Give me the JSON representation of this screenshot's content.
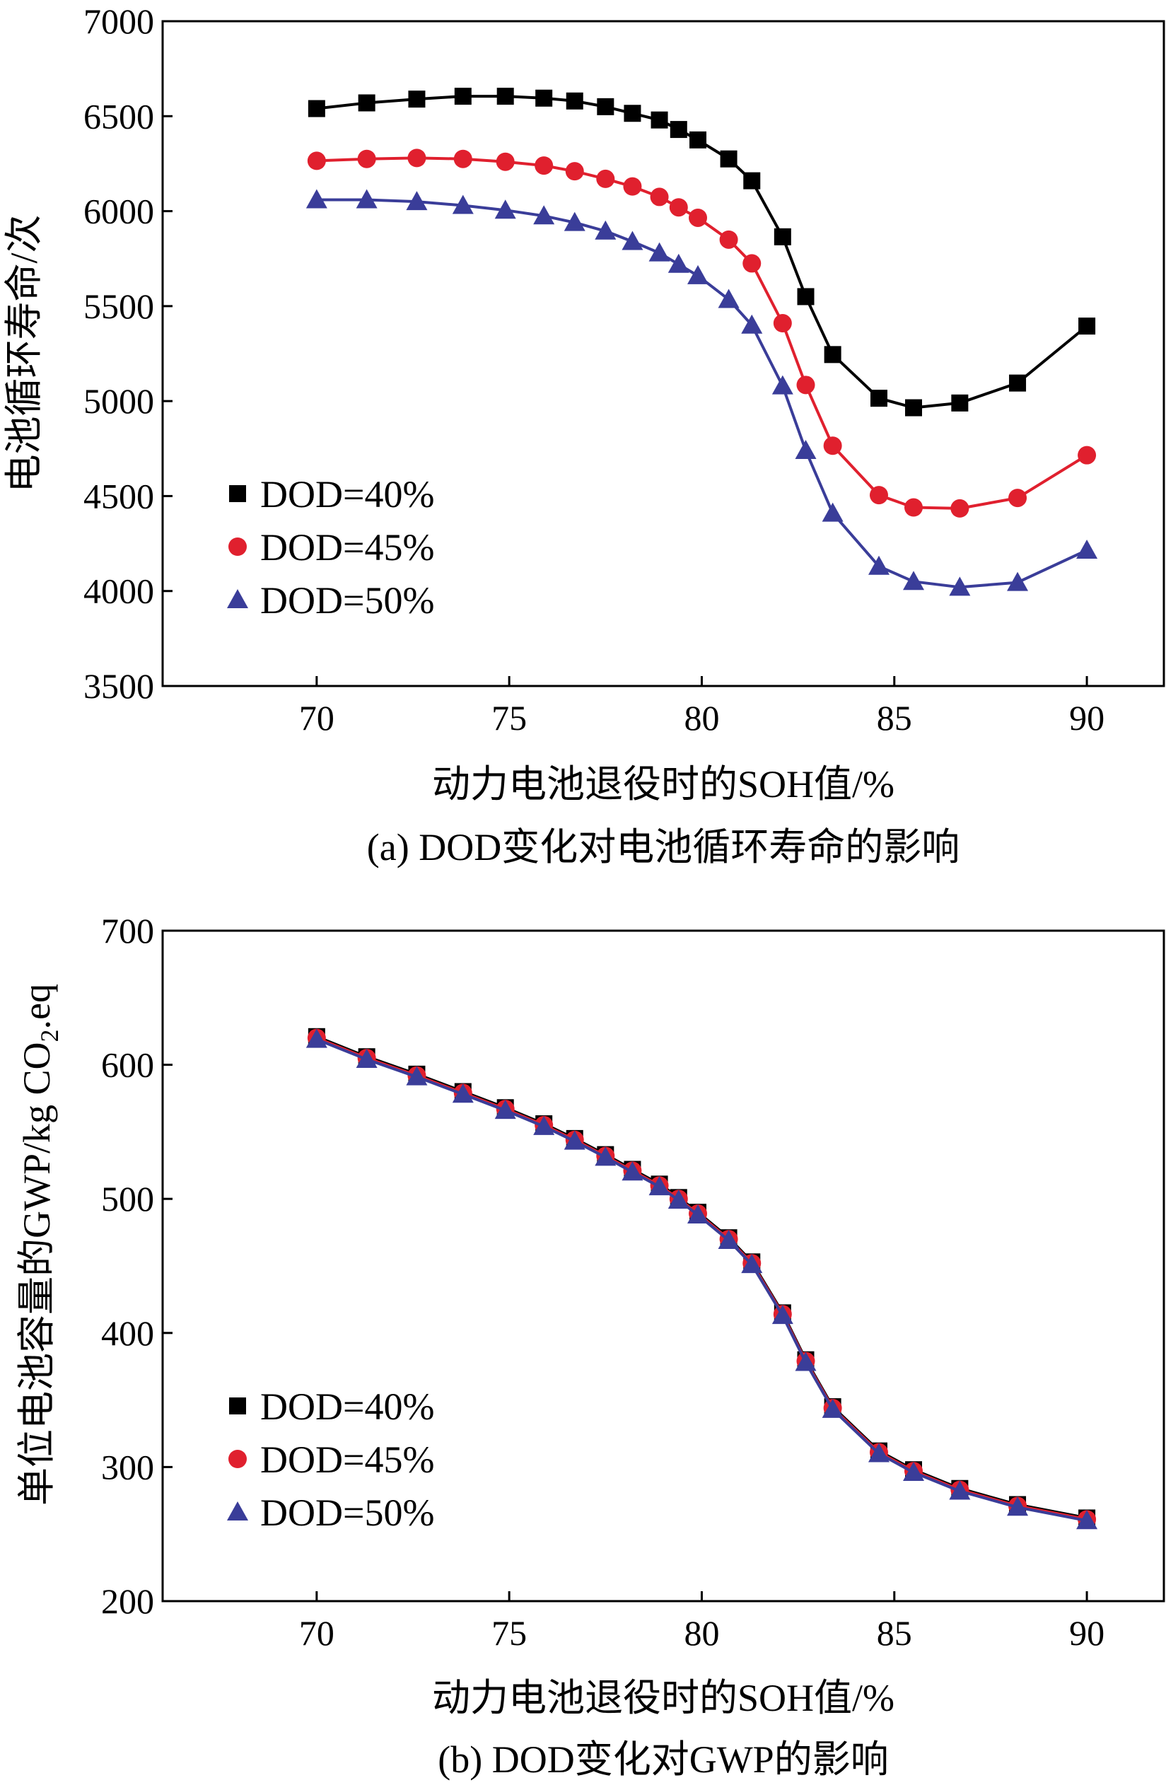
{
  "chart_data": [
    {
      "type": "line",
      "caption": "(a) DOD变化对电池循环寿命的影响",
      "xlabel": "动力电池退役时的SOH值/%",
      "ylabel": "电池循环寿命/次",
      "xlim": [
        66,
        92
      ],
      "ylim": [
        3500,
        7000
      ],
      "xticks": [
        70,
        75,
        80,
        85,
        90
      ],
      "yticks": [
        3500,
        4000,
        4500,
        5000,
        5500,
        6000,
        6500,
        7000
      ],
      "xtick_labels": [
        "70",
        "75",
        "80",
        "85",
        "90"
      ],
      "ytick_labels": [
        "3500",
        "4000",
        "4500",
        "5000",
        "5500",
        "6000",
        "6500",
        "7000"
      ],
      "legend_position": "lower-left",
      "grid": false,
      "series": [
        {
          "name": "DOD=40%",
          "marker": "square",
          "color": "#000000",
          "x": [
            70,
            71.3,
            72.6,
            73.8,
            74.9,
            75.9,
            76.7,
            77.5,
            78.2,
            78.9,
            79.4,
            79.9,
            80.7,
            81.3,
            82.1,
            82.7,
            83.4,
            84.6,
            85.5,
            86.7,
            88.2,
            90
          ],
          "y": [
            6540,
            6570,
            6590,
            6605,
            6605,
            6595,
            6580,
            6550,
            6515,
            6480,
            6430,
            6375,
            6275,
            6160,
            5865,
            5550,
            5245,
            5015,
            4965,
            4990,
            5095,
            5395
          ]
        },
        {
          "name": "DOD=45%",
          "marker": "circle",
          "color": "#e0202e",
          "x": [
            70,
            71.3,
            72.6,
            73.8,
            74.9,
            75.9,
            76.7,
            77.5,
            78.2,
            78.9,
            79.4,
            79.9,
            80.7,
            81.3,
            82.1,
            82.7,
            83.4,
            84.6,
            85.5,
            86.7,
            88.2,
            90
          ],
          "y": [
            6265,
            6275,
            6280,
            6275,
            6260,
            6240,
            6210,
            6170,
            6130,
            6075,
            6020,
            5965,
            5850,
            5725,
            5410,
            5085,
            4765,
            4505,
            4440,
            4435,
            4490,
            4715
          ]
        },
        {
          "name": "DOD=50%",
          "marker": "triangle",
          "color": "#3a3d99",
          "x": [
            70,
            71.3,
            72.6,
            73.8,
            74.9,
            75.9,
            76.7,
            77.5,
            78.2,
            78.9,
            79.4,
            79.9,
            80.7,
            81.3,
            82.1,
            82.7,
            83.4,
            84.6,
            85.5,
            86.7,
            88.2,
            90
          ],
          "y": [
            6060,
            6060,
            6050,
            6030,
            6005,
            5975,
            5940,
            5895,
            5840,
            5780,
            5720,
            5660,
            5535,
            5400,
            5080,
            4740,
            4410,
            4130,
            4050,
            4020,
            4045,
            4215
          ]
        }
      ]
    },
    {
      "type": "line",
      "caption": "(b) DOD变化对GWP的影响",
      "xlabel": "动力电池退役时的SOH值/%",
      "ylabel": "单位电池容量的GWP/kg CO",
      "ylabel_subscript": "2",
      "ylabel_suffix": ".eq",
      "xlim": [
        66,
        92
      ],
      "ylim": [
        200,
        700
      ],
      "xticks": [
        70,
        75,
        80,
        85,
        90
      ],
      "yticks": [
        200,
        300,
        400,
        500,
        600,
        700
      ],
      "xtick_labels": [
        "70",
        "75",
        "80",
        "85",
        "90"
      ],
      "ytick_labels": [
        "200",
        "300",
        "400",
        "500",
        "600",
        "700"
      ],
      "legend_position": "lower-left",
      "grid": false,
      "series": [
        {
          "name": "DOD=40%",
          "marker": "square",
          "color": "#000000",
          "x": [
            70,
            71.3,
            72.6,
            73.8,
            74.9,
            75.9,
            76.7,
            77.5,
            78.2,
            78.9,
            79.4,
            79.9,
            80.7,
            81.3,
            82.1,
            82.7,
            83.4,
            84.6,
            85.5,
            86.7,
            88.2,
            90
          ],
          "y": [
            621,
            606,
            593,
            580,
            568,
            556,
            545,
            533,
            522,
            511,
            501,
            490,
            471,
            453,
            415,
            380,
            345,
            312,
            298,
            284,
            272,
            262
          ]
        },
        {
          "name": "DOD=45%",
          "marker": "circle",
          "color": "#e0202e",
          "x": [
            70,
            71.3,
            72.6,
            73.8,
            74.9,
            75.9,
            76.7,
            77.5,
            78.2,
            78.9,
            79.4,
            79.9,
            80.7,
            81.3,
            82.1,
            82.7,
            83.4,
            84.6,
            85.5,
            86.7,
            88.2,
            90
          ],
          "y": [
            620,
            605,
            592,
            579,
            567,
            555,
            544,
            532,
            521,
            510,
            500,
            489,
            470,
            452,
            414,
            379,
            344,
            311,
            297,
            283,
            271,
            261
          ]
        },
        {
          "name": "DOD=50%",
          "marker": "triangle",
          "color": "#3a3d99",
          "x": [
            70,
            71.3,
            72.6,
            73.8,
            74.9,
            75.9,
            76.7,
            77.5,
            78.2,
            78.9,
            79.4,
            79.9,
            80.7,
            81.3,
            82.1,
            82.7,
            83.4,
            84.6,
            85.5,
            86.7,
            88.2,
            90
          ],
          "y": [
            619,
            604,
            591,
            578,
            566,
            554,
            543,
            531,
            520,
            509,
            499,
            488,
            469,
            451,
            413,
            378,
            343,
            310,
            296,
            282,
            270,
            260
          ]
        }
      ]
    }
  ]
}
